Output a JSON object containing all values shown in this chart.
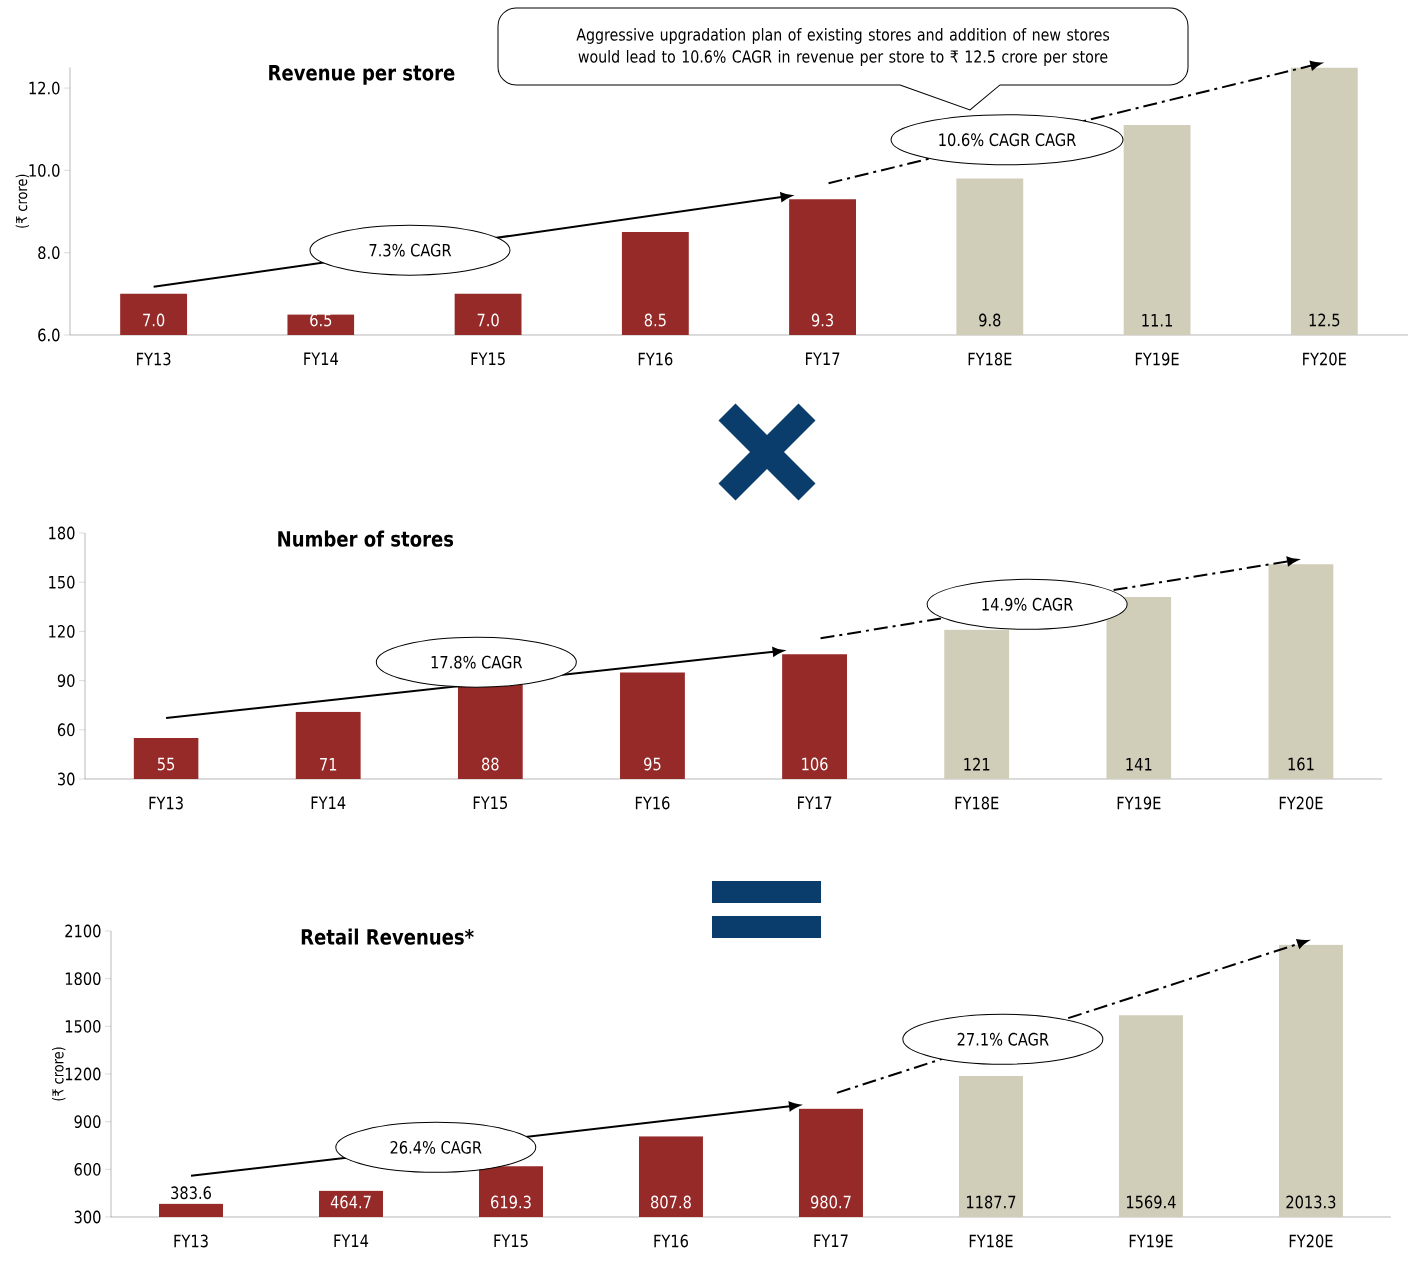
{
  "chart_data": [
    {
      "type": "bar",
      "title": "Revenue per store",
      "ylabel": "(₹ crore)",
      "categories": [
        "FY13",
        "FY14",
        "FY15",
        "FY16",
        "FY17",
        "FY18E",
        "FY19E",
        "FY20E"
      ],
      "values": [
        7.0,
        6.5,
        7.0,
        8.5,
        9.3,
        9.8,
        11.1,
        12.5
      ],
      "colors": [
        "#962a28",
        "#962a28",
        "#962a28",
        "#962a28",
        "#962a28",
        "#d0cdb9",
        "#d0cdb9",
        "#d0cdb9"
      ],
      "ylim": [
        6,
        12.5
      ],
      "yticks": [
        {
          "value": 6,
          "label": "6.0"
        },
        {
          "value": 8,
          "label": "8.0"
        },
        {
          "value": 10,
          "label": "10.0"
        },
        {
          "value": 12,
          "label": "12.0"
        }
      ],
      "value_labels": [
        "7.0",
        "6.5",
        "7.0",
        "8.5",
        "9.3",
        "9.8",
        "11.1",
        "12.5"
      ],
      "data_labels": true,
      "annotations": [
        "7.3% CAGR",
        "10.6% CAGR CAGR",
        "Aggressive upgradation plan of existing stores and addition of new stores would lead to 10.6% CAGR in revenue per store to ₹ 12.5 crore per store"
      ]
    },
    {
      "type": "bar",
      "title": "Number of stores",
      "categories": [
        "FY13",
        "FY14",
        "FY15",
        "FY16",
        "FY17",
        "FY18E",
        "FY19E",
        "FY20E"
      ],
      "values": [
        55,
        71,
        88,
        95,
        106,
        121,
        141,
        161
      ],
      "colors": [
        "#962a28",
        "#962a28",
        "#962a28",
        "#962a28",
        "#962a28",
        "#d0cdb9",
        "#d0cdb9",
        "#d0cdb9"
      ],
      "ylim": [
        30,
        180
      ],
      "yticks": [
        30,
        60,
        90,
        120,
        150,
        180
      ],
      "data_labels": true,
      "annotations": [
        "17.8% CAGR",
        "14.9% CAGR"
      ]
    },
    {
      "type": "bar",
      "title": "Retail Revenues*",
      "ylabel": "(₹ crore)",
      "categories": [
        "FY13",
        "FY14",
        "FY15",
        "FY16",
        "FY17",
        "FY18E",
        "FY19E",
        "FY20E"
      ],
      "values": [
        383.6,
        464.7,
        619.3,
        807.8,
        980.7,
        1187.7,
        1569.4,
        2013.3
      ],
      "colors": [
        "#962a28",
        "#962a28",
        "#962a28",
        "#962a28",
        "#962a28",
        "#d0cdb9",
        "#d0cdb9",
        "#d0cdb9"
      ],
      "ylim": [
        300,
        2100
      ],
      "yticks": [
        300,
        600,
        900,
        1200,
        1500,
        1800,
        2100
      ],
      "data_labels": true,
      "annotations": [
        "26.4% CAGR",
        "27.1% CAGR"
      ]
    }
  ]
}
